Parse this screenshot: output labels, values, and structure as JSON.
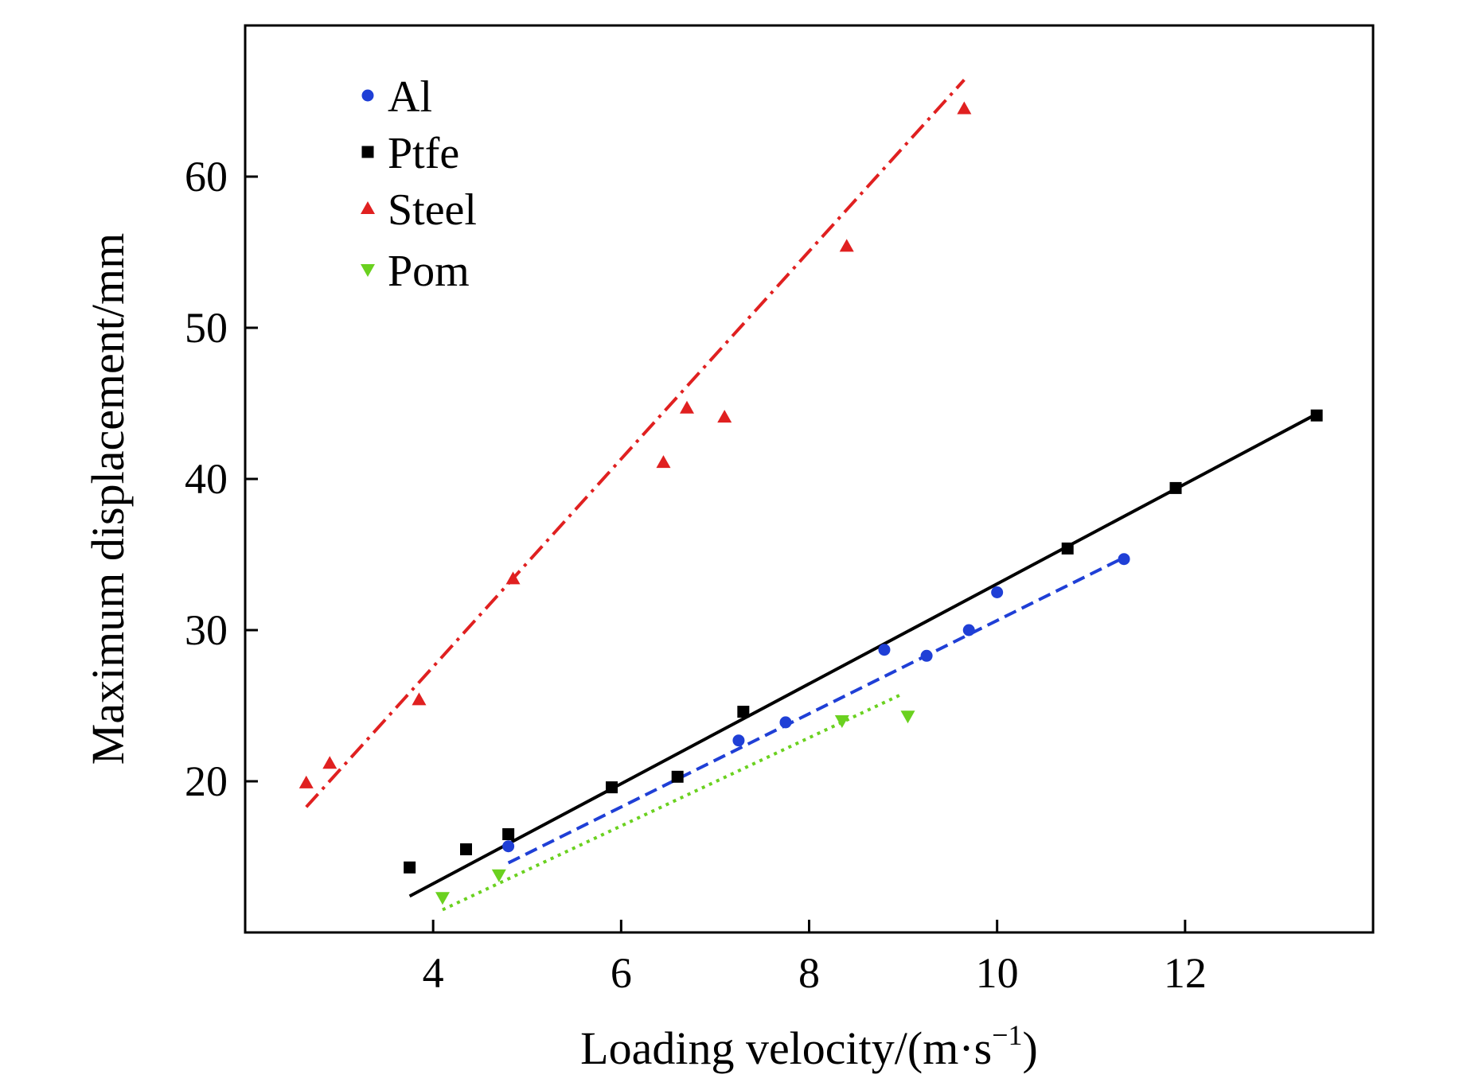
{
  "chart_data": {
    "type": "scatter",
    "title": "",
    "xlabel": "Loading velocity/(m·s",
    "xlabel_sup": "−1",
    "xlabel_end": ")",
    "ylabel": "Maximum displacement/mm",
    "xlim": [
      2,
      14
    ],
    "ylim": [
      10,
      70
    ],
    "xticks": [
      4,
      6,
      8,
      10,
      12
    ],
    "yticks": [
      20,
      30,
      40,
      50,
      60
    ],
    "grid": false,
    "legend_position": "top-left",
    "series": [
      {
        "name": "Al",
        "marker": "circle",
        "color": "#1f3fd6",
        "line_style": "dashed",
        "x": [
          4.8,
          7.25,
          7.75,
          8.8,
          9.25,
          9.7,
          10.0,
          11.35
        ],
        "y": [
          15.7,
          22.7,
          23.9,
          28.7,
          28.3,
          30.0,
          32.5,
          34.7
        ],
        "fit": {
          "x": [
            4.8,
            11.35
          ],
          "y": [
            14.6,
            34.8
          ]
        }
      },
      {
        "name": "Ptfe",
        "marker": "square",
        "color": "#000000",
        "line_style": "solid",
        "x": [
          3.75,
          4.35,
          4.8,
          5.9,
          6.6,
          7.3,
          10.75,
          11.9,
          13.4
        ],
        "y": [
          14.3,
          15.5,
          16.5,
          19.6,
          20.3,
          24.6,
          35.4,
          39.4,
          44.2
        ],
        "fit": {
          "x": [
            3.75,
            13.4
          ],
          "y": [
            12.4,
            44.3
          ]
        }
      },
      {
        "name": "Steel",
        "marker": "triangle-up",
        "color": "#e02020",
        "line_style": "dash-dot",
        "x": [
          2.65,
          2.9,
          3.85,
          4.85,
          6.45,
          6.7,
          7.1,
          8.4,
          9.65
        ],
        "y": [
          19.9,
          21.2,
          25.4,
          33.4,
          41.1,
          44.7,
          44.1,
          55.4,
          64.5
        ],
        "fit": {
          "x": [
            2.65,
            9.65
          ],
          "y": [
            18.3,
            66.4
          ]
        }
      },
      {
        "name": "Pom",
        "marker": "triangle-down",
        "color": "#6ad11f",
        "line_style": "dotted",
        "x": [
          4.1,
          4.7,
          8.35,
          9.05
        ],
        "y": [
          12.3,
          13.8,
          24.0,
          24.3
        ],
        "fit": {
          "x": [
            4.1,
            9.0
          ],
          "y": [
            11.5,
            25.8
          ]
        }
      }
    ]
  }
}
